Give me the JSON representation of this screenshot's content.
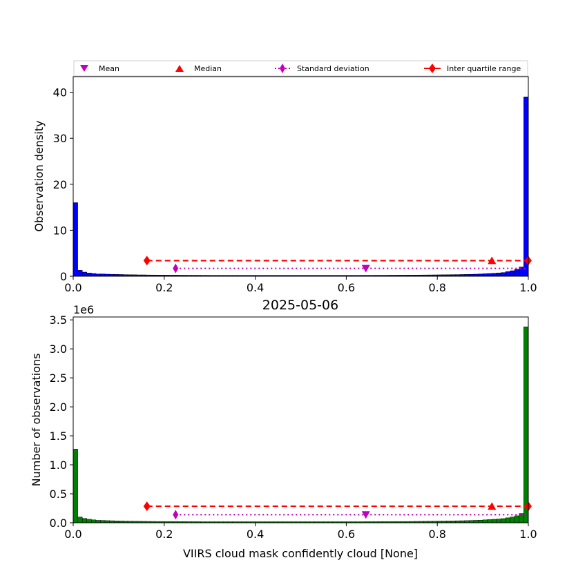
{
  "chart_data": [
    {
      "type": "bar",
      "panel": "top",
      "title": "",
      "xlabel": "",
      "ylabel": "Observation density",
      "xlim": [
        0,
        1
      ],
      "ylim": [
        0,
        43.4
      ],
      "xticks": [
        0.0,
        0.2,
        0.4,
        0.6,
        0.8,
        1.0
      ],
      "xtick_labels": [
        "0.0",
        "0.2",
        "0.4",
        "0.6",
        "0.8",
        "1.0"
      ],
      "yticks": [
        0,
        10,
        20,
        30,
        40
      ],
      "ytick_labels": [
        "0",
        "10",
        "20",
        "30",
        "40"
      ],
      "bin_width": 0.01,
      "bar_color": "#0000ff",
      "values": [
        16,
        1.3,
        0.9,
        0.7,
        0.6,
        0.5,
        0.5,
        0.45,
        0.42,
        0.4,
        0.38,
        0.35,
        0.33,
        0.32,
        0.3,
        0.3,
        0.28,
        0.27,
        0.26,
        0.25,
        0.25,
        0.24,
        0.24,
        0.23,
        0.23,
        0.22,
        0.22,
        0.22,
        0.21,
        0.21,
        0.2,
        0.2,
        0.2,
        0.2,
        0.2,
        0.2,
        0.2,
        0.2,
        0.2,
        0.2,
        0.2,
        0.2,
        0.2,
        0.2,
        0.2,
        0.2,
        0.2,
        0.2,
        0.2,
        0.2,
        0.2,
        0.2,
        0.2,
        0.2,
        0.2,
        0.2,
        0.2,
        0.2,
        0.2,
        0.2,
        0.2,
        0.2,
        0.2,
        0.21,
        0.21,
        0.21,
        0.22,
        0.22,
        0.22,
        0.23,
        0.23,
        0.24,
        0.24,
        0.25,
        0.25,
        0.26,
        0.27,
        0.28,
        0.29,
        0.3,
        0.31,
        0.32,
        0.33,
        0.35,
        0.36,
        0.38,
        0.4,
        0.42,
        0.45,
        0.5,
        0.55,
        0.6,
        0.65,
        0.72,
        0.8,
        1.0,
        1.2,
        1.5,
        2.0,
        39.0
      ],
      "markers": {
        "mean": {
          "x": 0.643,
          "y": 1.7
        },
        "median": {
          "x": 0.92,
          "y": 3.4
        },
        "std": {
          "x1": 0.225,
          "x2": 1.0,
          "y": 1.7
        },
        "iqr": {
          "x1": 0.162,
          "x2": 1.0,
          "y": 3.4
        }
      }
    },
    {
      "type": "bar",
      "panel": "bottom",
      "title": "2025-05-06",
      "xlabel": "VIIRS cloud mask confidently cloud [None]",
      "ylabel": "Number of observations",
      "offset_text": "1e6",
      "xlim": [
        0,
        1
      ],
      "ylim": [
        0,
        3.55
      ],
      "xticks": [
        0.0,
        0.2,
        0.4,
        0.6,
        0.8,
        1.0
      ],
      "xtick_labels": [
        "0.0",
        "0.2",
        "0.4",
        "0.6",
        "0.8",
        "1.0"
      ],
      "yticks": [
        0,
        0.5,
        1.0,
        1.5,
        2.0,
        2.5,
        3.0,
        3.5
      ],
      "ytick_labels": [
        "0.0",
        "0.5",
        "1.0",
        "1.5",
        "2.0",
        "2.5",
        "3.0",
        "3.5"
      ],
      "bin_width": 0.01,
      "bar_color": "#008000",
      "values": [
        1.27,
        0.1,
        0.075,
        0.06,
        0.05,
        0.042,
        0.04,
        0.037,
        0.035,
        0.033,
        0.031,
        0.029,
        0.028,
        0.027,
        0.026,
        0.025,
        0.024,
        0.023,
        0.022,
        0.022,
        0.021,
        0.021,
        0.02,
        0.02,
        0.02,
        0.019,
        0.019,
        0.019,
        0.018,
        0.018,
        0.018,
        0.018,
        0.018,
        0.018,
        0.018,
        0.018,
        0.018,
        0.018,
        0.018,
        0.018,
        0.018,
        0.018,
        0.018,
        0.018,
        0.018,
        0.018,
        0.018,
        0.018,
        0.018,
        0.018,
        0.018,
        0.018,
        0.018,
        0.018,
        0.018,
        0.018,
        0.018,
        0.018,
        0.018,
        0.018,
        0.018,
        0.018,
        0.018,
        0.018,
        0.019,
        0.019,
        0.019,
        0.02,
        0.02,
        0.02,
        0.021,
        0.021,
        0.022,
        0.022,
        0.023,
        0.024,
        0.025,
        0.026,
        0.027,
        0.028,
        0.029,
        0.03,
        0.031,
        0.032,
        0.034,
        0.035,
        0.037,
        0.039,
        0.042,
        0.045,
        0.05,
        0.055,
        0.06,
        0.065,
        0.072,
        0.085,
        0.1,
        0.12,
        0.16,
        3.38
      ],
      "markers": {
        "mean": {
          "x": 0.643,
          "y": 0.14
        },
        "median": {
          "x": 0.92,
          "y": 0.285
        },
        "std": {
          "x1": 0.225,
          "x2": 1.0,
          "y": 0.14
        },
        "iqr": {
          "x1": 0.162,
          "x2": 1.0,
          "y": 0.285
        }
      }
    }
  ],
  "legend": {
    "placement": "top",
    "entries": [
      {
        "label": "Mean",
        "marker": "triangle-down",
        "color": "#bf00bf"
      },
      {
        "label": "Median",
        "marker": "triangle-up",
        "color": "#ff0000"
      },
      {
        "label": "Standard deviation",
        "marker": "thin-diamond-dotted",
        "color": "#bf00bf"
      },
      {
        "label": "Inter quartile range",
        "marker": "diamond-dashed",
        "color": "#ff0000"
      }
    ]
  },
  "colors": {
    "mean": "#bf00bf",
    "median": "#ff0000",
    "std": "#bf00bf",
    "iqr": "#ff0000"
  }
}
